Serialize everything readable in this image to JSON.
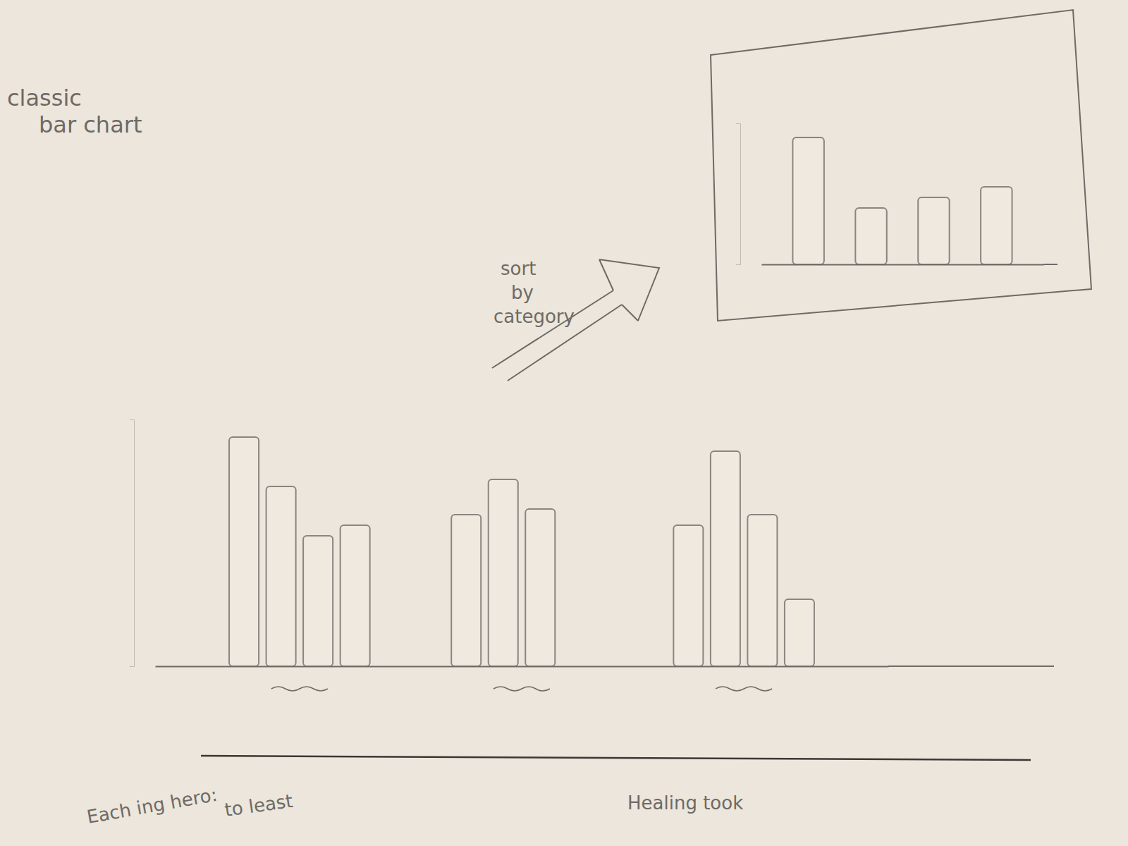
{
  "chart_data": [
    {
      "type": "bar",
      "title": "classic bar chart",
      "categories": [
        null,
        null,
        null
      ],
      "series": [
        {
          "values": [
            325,
            215,
            200
          ]
        },
        {
          "values": [
            255,
            265,
            305
          ]
        },
        {
          "values": [
            185,
            223,
            215
          ]
        },
        {
          "values": [
            200,
            null,
            95
          ]
        }
      ],
      "color": "#8a8580",
      "ylim": [
        0,
        350
      ],
      "yticks": [],
      "tick_labels": false,
      "annotations": [
        "sort by category",
        "Each ing hero:",
        "to least",
        "Healing took"
      ]
    },
    {
      "type": "bar",
      "categories": [
        null,
        null,
        null,
        null
      ],
      "values": [
        180,
        80,
        95,
        110
      ],
      "color": "#8a8580",
      "ylim": [
        0,
        200
      ],
      "yticks": [],
      "tick_labels": false
    }
  ]
}
